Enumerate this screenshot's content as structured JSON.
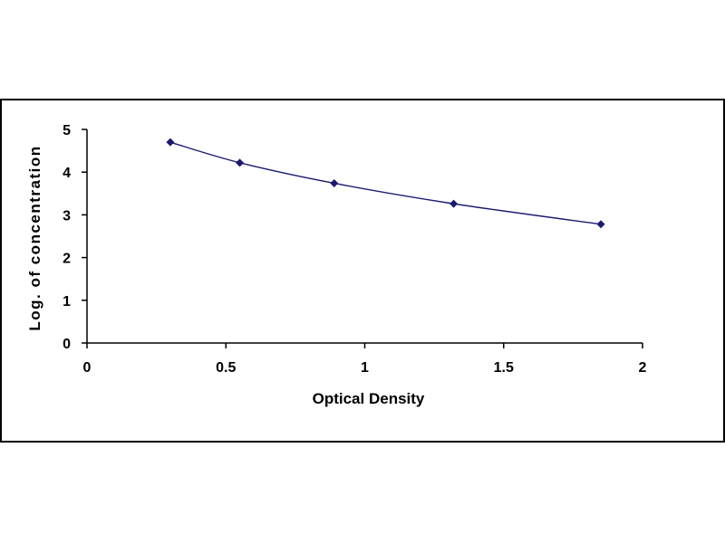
{
  "chart_data": {
    "type": "scatter",
    "xlabel": "Optical Density",
    "ylabel": "Log. of concentration",
    "xlim": [
      0,
      2
    ],
    "ylim": [
      0,
      5
    ],
    "x_ticks": [
      "0",
      "0.5",
      "1",
      "1.5",
      "2"
    ],
    "y_ticks": [
      "0",
      "1",
      "2",
      "3",
      "4",
      "5"
    ],
    "grid": false,
    "legend": "none",
    "trendline": "smooth curve through points",
    "series": [
      {
        "x": [
          0.3,
          0.55,
          0.89,
          1.32,
          1.85
        ],
        "y": [
          4.7,
          4.22,
          3.74,
          3.26,
          2.78
        ]
      }
    ],
    "colors": {
      "point": "#1a1a6e",
      "line": "#1a1a6e",
      "axis": "#000000",
      "frame": "#000000"
    }
  }
}
